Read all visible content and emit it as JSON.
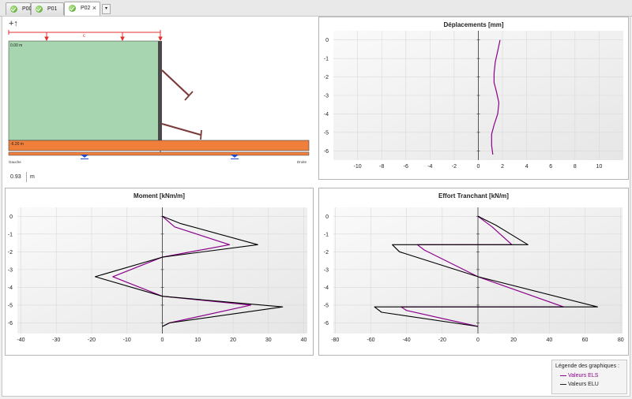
{
  "tabs": [
    {
      "label": "P00",
      "active": false
    },
    {
      "label": "P01",
      "active": false
    },
    {
      "label": "P02",
      "active": true
    }
  ],
  "tab_close": "×",
  "tab_dropdown": "▾",
  "section": {
    "add_icon": "+↑",
    "load_label": "c",
    "level_top": "0.00 m",
    "level_bottom": "-6.20 m",
    "left_label": "Gauche",
    "right_label": "Droite",
    "value": "0.93",
    "unit": "m",
    "colors": {
      "soil": "#a6d5b0",
      "slab": "#f07f3c",
      "wall": "#555555",
      "anchor": "#7b3b3b",
      "load": "#e03131"
    }
  },
  "legend": {
    "title": "Légende des graphiques :",
    "items": [
      {
        "label": "Valeurs ELS",
        "color": "#8b008b"
      },
      {
        "label": "Valeurs ELU",
        "color": "#000000"
      }
    ]
  },
  "chart_data": [
    {
      "type": "line",
      "title": "Déplacements [mm]",
      "xlim": [
        -12,
        12
      ],
      "ylim": [
        -6.5,
        0.5
      ],
      "xticks": [
        -10,
        -8,
        -6,
        -4,
        -2,
        0,
        2,
        4,
        6,
        8,
        10
      ],
      "yticks": [
        0,
        -1,
        -2,
        -3,
        -4,
        -5,
        -6
      ],
      "series": [
        {
          "color": "#8b008b",
          "x": [
            1.8,
            1.6,
            1.4,
            1.3,
            1.3,
            1.5,
            1.7,
            1.6,
            1.3,
            1.1,
            1.1,
            1.2
          ],
          "y": [
            0,
            -0.6,
            -1.2,
            -1.8,
            -2.3,
            -2.8,
            -3.4,
            -4.0,
            -4.6,
            -5.1,
            -5.7,
            -6.2
          ]
        }
      ]
    },
    {
      "type": "line",
      "title": "Moment [kNm/m]",
      "xlim": [
        -41,
        41
      ],
      "ylim": [
        -6.6,
        0.5
      ],
      "xticks": [
        -40,
        -30,
        -20,
        -10,
        0,
        10,
        20,
        30,
        40
      ],
      "yticks": [
        0,
        -1,
        -2,
        -3,
        -4,
        -5,
        -6
      ],
      "series": [
        {
          "color": "#8b008b",
          "x": [
            0,
            3.5,
            19,
            0,
            -14,
            0,
            25,
            2,
            0
          ],
          "y": [
            0,
            -0.6,
            -1.6,
            -2.3,
            -3.4,
            -4.5,
            -5.0,
            -6.0,
            -6.2
          ]
        },
        {
          "color": "#000000",
          "x": [
            0,
            5,
            27,
            0,
            -19,
            0,
            34,
            2,
            0
          ],
          "y": [
            0,
            -0.4,
            -1.6,
            -2.3,
            -3.4,
            -4.5,
            -5.1,
            -6.0,
            -6.2
          ]
        }
      ]
    },
    {
      "type": "line",
      "title": "Effort Tranchant [kN/m]",
      "xlim": [
        -81,
        81
      ],
      "ylim": [
        -6.6,
        0.5
      ],
      "xticks": [
        -80,
        -60,
        -40,
        -20,
        0,
        20,
        40,
        60,
        80
      ],
      "yticks": [
        0,
        -1,
        -2,
        -3,
        -4,
        -5,
        -6
      ],
      "series": [
        {
          "color": "#8b008b",
          "x": [
            0,
            8,
            19,
            -34,
            -30,
            0,
            48,
            -43,
            -40,
            0
          ],
          "y": [
            0,
            -0.6,
            -1.6,
            -1.6,
            -1.9,
            -3.4,
            -5.1,
            -5.1,
            -5.3,
            -6.2
          ]
        },
        {
          "color": "#000000",
          "x": [
            0,
            10,
            28,
            -48,
            -44,
            0,
            67,
            -58,
            -54,
            0
          ],
          "y": [
            0,
            -0.5,
            -1.6,
            -1.6,
            -2.0,
            -3.4,
            -5.1,
            -5.1,
            -5.4,
            -6.2
          ]
        }
      ]
    }
  ]
}
